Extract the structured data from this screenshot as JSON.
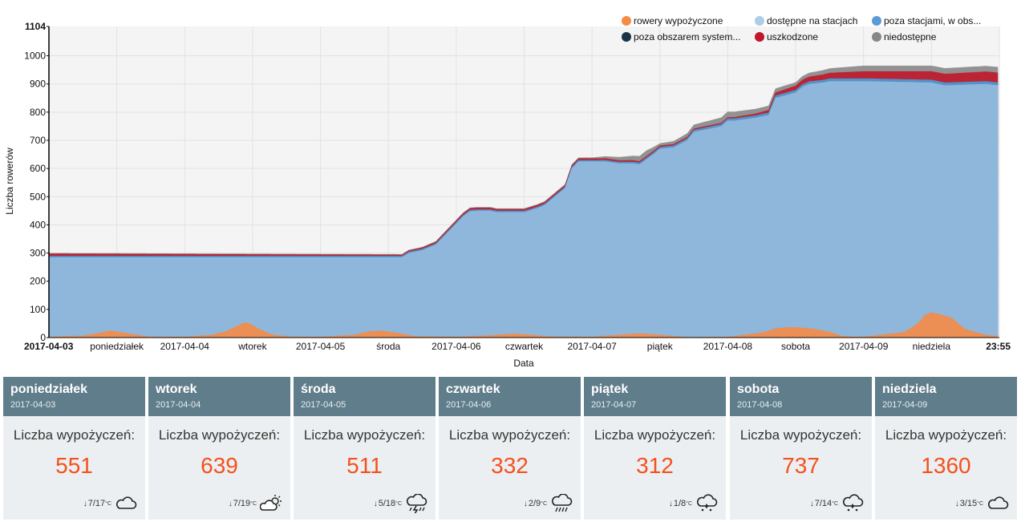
{
  "chart_data": {
    "type": "area",
    "stacked": true,
    "title": "",
    "xlabel": "Data",
    "ylabel": "Liczba rowerów",
    "ylim": [
      0,
      1104
    ],
    "yticks": [
      "0",
      "100",
      "200",
      "300",
      "400",
      "500",
      "600",
      "700",
      "800",
      "900",
      "1000",
      "1104"
    ],
    "xticks": [
      "2017-04-03",
      "poniedziałek",
      "2017-04-04",
      "wtorek",
      "2017-04-05",
      "środa",
      "2017-04-06",
      "czwartek",
      "2017-04-07",
      "piątek",
      "2017-04-08",
      "sobota",
      "2017-04-09",
      "niedziela",
      "23:55"
    ],
    "x_start": "2017-04-03 00:00",
    "x_end": "2017-04-09 23:55",
    "grid": true,
    "legend_position": "top-right",
    "legend": [
      {
        "name": "rowery wypożyczone",
        "color": "#f58b45"
      },
      {
        "name": "dostępne na stacjach",
        "color": "#aecde6"
      },
      {
        "name": "poza stacjami, w obs...",
        "color": "#5b9bd5"
      },
      {
        "name": "poza obszarem system...",
        "color": "#1b3548"
      },
      {
        "name": "uszkodzone",
        "color": "#c0182a"
      },
      {
        "name": "niedostępne",
        "color": "#878787"
      }
    ],
    "series": [
      {
        "name": "rowery wypożyczone",
        "color": "#f58b45",
        "x": [
          0,
          0.25,
          0.35,
          0.45,
          0.55,
          0.62,
          0.75,
          1.0,
          1.2,
          1.3,
          1.38,
          1.45,
          1.5,
          1.55,
          1.65,
          1.8,
          2.0,
          2.25,
          2.35,
          2.45,
          2.55,
          2.7,
          3.0,
          3.25,
          3.35,
          3.45,
          3.55,
          3.7,
          4.0,
          4.25,
          4.35,
          4.45,
          4.55,
          4.7,
          5.0,
          5.25,
          5.35,
          5.45,
          5.55,
          5.65,
          5.75,
          5.85,
          6.0,
          6.3,
          6.4,
          6.45,
          6.5,
          6.55,
          6.65,
          6.75,
          6.9,
          6.998
        ],
        "values": [
          3,
          7,
          15,
          25,
          18,
          12,
          3,
          3,
          10,
          22,
          40,
          55,
          45,
          30,
          10,
          3,
          3,
          10,
          22,
          25,
          18,
          5,
          3,
          8,
          12,
          14,
          10,
          4,
          3,
          12,
          15,
          12,
          8,
          2,
          3,
          18,
          32,
          38,
          35,
          30,
          20,
          5,
          3,
          20,
          50,
          80,
          90,
          85,
          70,
          30,
          10,
          5
        ]
      },
      {
        "name": "dostępne na stacjach",
        "color": "#aecde6",
        "x": [
          0,
          0.5,
          0.55,
          0.6,
          0.8,
          0.85,
          1.0,
          1.2,
          1.4,
          1.5,
          1.7,
          1.85,
          2.0,
          2.2,
          2.5,
          2.6,
          2.65,
          2.75,
          2.85,
          2.9,
          3.0,
          3.05,
          3.1,
          3.15,
          3.25,
          3.3,
          3.5,
          3.6,
          3.65,
          3.8,
          3.85,
          3.9,
          4.0,
          4.1,
          4.2,
          4.3,
          4.35,
          4.45,
          4.5,
          4.6,
          4.7,
          4.75,
          4.95,
          5.0,
          5.05,
          5.2,
          5.3,
          5.35,
          5.5,
          5.55,
          5.6,
          5.7,
          5.75,
          5.8,
          5.9,
          5.95,
          6.0,
          6.5,
          6.6,
          6.9,
          6.998
        ],
        "values": [
          285,
          285,
          285,
          285,
          285,
          285,
          285,
          285,
          285,
          285,
          285,
          285,
          285,
          285,
          285,
          285,
          300,
          310,
          330,
          355,
          405,
          430,
          448,
          450,
          450,
          445,
          445,
          460,
          470,
          530,
          600,
          625,
          625,
          625,
          618,
          618,
          615,
          650,
          670,
          675,
          700,
          730,
          750,
          770,
          770,
          780,
          790,
          850,
          870,
          890,
          900,
          905,
          910,
          910,
          910,
          910,
          910,
          905,
          895,
          900,
          895
        ]
      },
      {
        "name": "poza stacjami, w obs...",
        "color": "#5b9bd5",
        "x": [
          0,
          3.0,
          3.5,
          4.0,
          5.0,
          6.0,
          6.998
        ],
        "values": [
          5,
          5,
          5,
          5,
          8,
          10,
          10
        ]
      },
      {
        "name": "poza obszarem system...",
        "color": "#1b3548",
        "x": [
          0,
          6.998
        ],
        "values": [
          0,
          0
        ]
      },
      {
        "name": "uszkodzone",
        "color": "#c0182a",
        "x": [
          0,
          2.6,
          3.0,
          4.0,
          5.0,
          5.2,
          5.5,
          6.0,
          6.5,
          6.998
        ],
        "values": [
          8,
          4,
          6,
          6,
          4,
          6,
          15,
          25,
          30,
          35
        ]
      },
      {
        "name": "niedostępne",
        "color": "#878787",
        "x": [
          0,
          2.6,
          3.0,
          4.0,
          4.4,
          4.5,
          5.0,
          5.5,
          6.0,
          6.998
        ],
        "values": [
          2,
          2,
          2,
          3,
          20,
          8,
          20,
          12,
          20,
          20
        ]
      }
    ]
  },
  "cards": [
    {
      "day": "poniedziałek",
      "date": "2017-04-03",
      "label": "Liczba wypożyczeń:",
      "count": "551",
      "temp": "7/17",
      "unit": "°C",
      "icon": "cloud-icon"
    },
    {
      "day": "wtorek",
      "date": "2017-04-04",
      "label": "Liczba wypożyczeń:",
      "count": "639",
      "temp": "7/19",
      "unit": "°C",
      "icon": "partly-sunny-icon"
    },
    {
      "day": "środa",
      "date": "2017-04-05",
      "label": "Liczba wypożyczeń:",
      "count": "511",
      "temp": "5/18",
      "unit": "°C",
      "icon": "thunderstorm-icon"
    },
    {
      "day": "czwartek",
      "date": "2017-04-06",
      "label": "Liczba wypożyczeń:",
      "count": "332",
      "temp": "2/9",
      "unit": "°C",
      "icon": "rain-icon"
    },
    {
      "day": "piątek",
      "date": "2017-04-07",
      "label": "Liczba wypożyczeń:",
      "count": "312",
      "temp": "1/8",
      "unit": "°C",
      "icon": "drizzle-icon"
    },
    {
      "day": "sobota",
      "date": "2017-04-08",
      "label": "Liczba wypożyczeń:",
      "count": "737",
      "temp": "7/14",
      "unit": "°C",
      "icon": "drizzle-icon"
    },
    {
      "day": "niedziela",
      "date": "2017-04-09",
      "label": "Liczba wypożyczeń:",
      "count": "1360",
      "temp": "3/15",
      "unit": "°C",
      "icon": "cloud-icon"
    }
  ]
}
